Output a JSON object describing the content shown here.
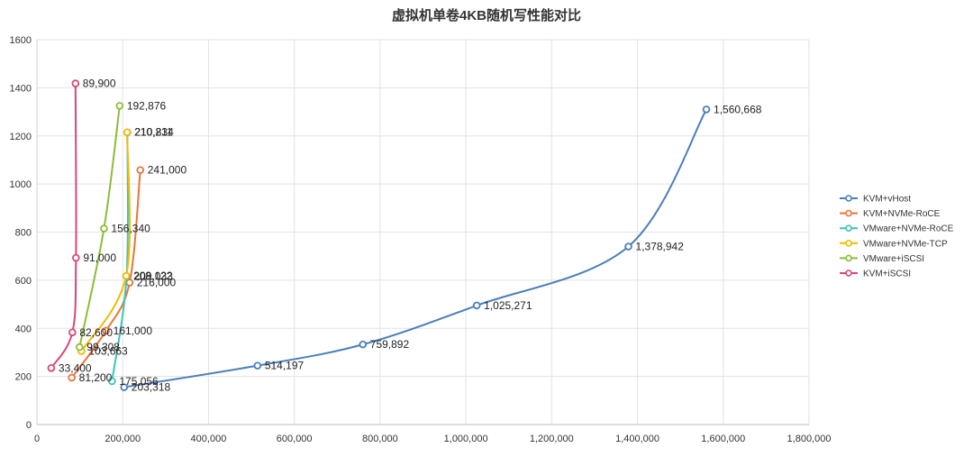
{
  "chart_data": {
    "type": "line",
    "title": "虚拟机单卷4KB随机写性能对比",
    "xlabel": "",
    "ylabel": "",
    "xlim": [
      0,
      1800000
    ],
    "ylim": [
      0,
      1600
    ],
    "x_ticks": [
      0,
      200000,
      400000,
      600000,
      800000,
      1000000,
      1200000,
      1400000,
      1600000,
      1800000
    ],
    "x_tick_labels": [
      "0",
      "200,000",
      "400,000",
      "600,000",
      "800,000",
      "1,000,000",
      "1,200,000",
      "1,400,000",
      "1,600,000",
      "1,800,000"
    ],
    "y_ticks": [
      0,
      200,
      400,
      600,
      800,
      1000,
      1200,
      1400,
      1600
    ],
    "y_tick_labels": [
      "0",
      "200",
      "400",
      "600",
      "800",
      "1000",
      "1200",
      "1400",
      "1600"
    ],
    "grid": true,
    "legend_position": "right",
    "series": [
      {
        "name": "KVM+vHost",
        "color": "#4a7ebb",
        "points": [
          [
            203318,
            155
          ],
          [
            514197,
            245
          ],
          [
            759892,
            333
          ],
          [
            1025271,
            495
          ],
          [
            1378942,
            740
          ],
          [
            1560668,
            1310
          ]
        ],
        "labels": [
          "203,318",
          "514,197",
          "759,892",
          "1,025,271",
          "1,378,942",
          "1,560,668"
        ]
      },
      {
        "name": "KVM+NVMe-RoCE",
        "color": "#e8753a",
        "points": [
          [
            81200,
            195
          ],
          [
            161000,
            390
          ],
          [
            216000,
            590
          ],
          [
            241000,
            1058
          ]
        ],
        "labels": [
          "81,200",
          "161,000",
          "216,000",
          "241,000"
        ]
      },
      {
        "name": "VMware+NVMe-RoCE",
        "color": "#3cc4b4",
        "points": [
          [
            175056,
            180
          ],
          [
            209033,
            616
          ],
          [
            210834,
            1215
          ]
        ],
        "labels": [
          "175,056",
          "209,033",
          "210,834"
        ]
      },
      {
        "name": "VMware+NVMe-TCP",
        "color": "#f5b800",
        "points": [
          [
            103663,
            305
          ],
          [
            208122,
            618
          ],
          [
            210211,
            1215
          ]
        ],
        "labels": [
          "103,663",
          "208,122",
          "210,211"
        ]
      },
      {
        "name": "VMware+iSCSI",
        "color": "#8dbc3b",
        "points": [
          [
            99308,
            322
          ],
          [
            156340,
            815
          ],
          [
            192876,
            1325
          ]
        ],
        "labels": [
          "99,308",
          "156,340",
          "192,876"
        ]
      },
      {
        "name": "KVM+iSCSI",
        "color": "#d9467a",
        "points": [
          [
            33400,
            235
          ],
          [
            82600,
            383
          ],
          [
            91000,
            693
          ],
          [
            89900,
            1418
          ]
        ],
        "labels": [
          "33,400",
          "82,600",
          "91,000",
          "89,900"
        ]
      }
    ]
  }
}
